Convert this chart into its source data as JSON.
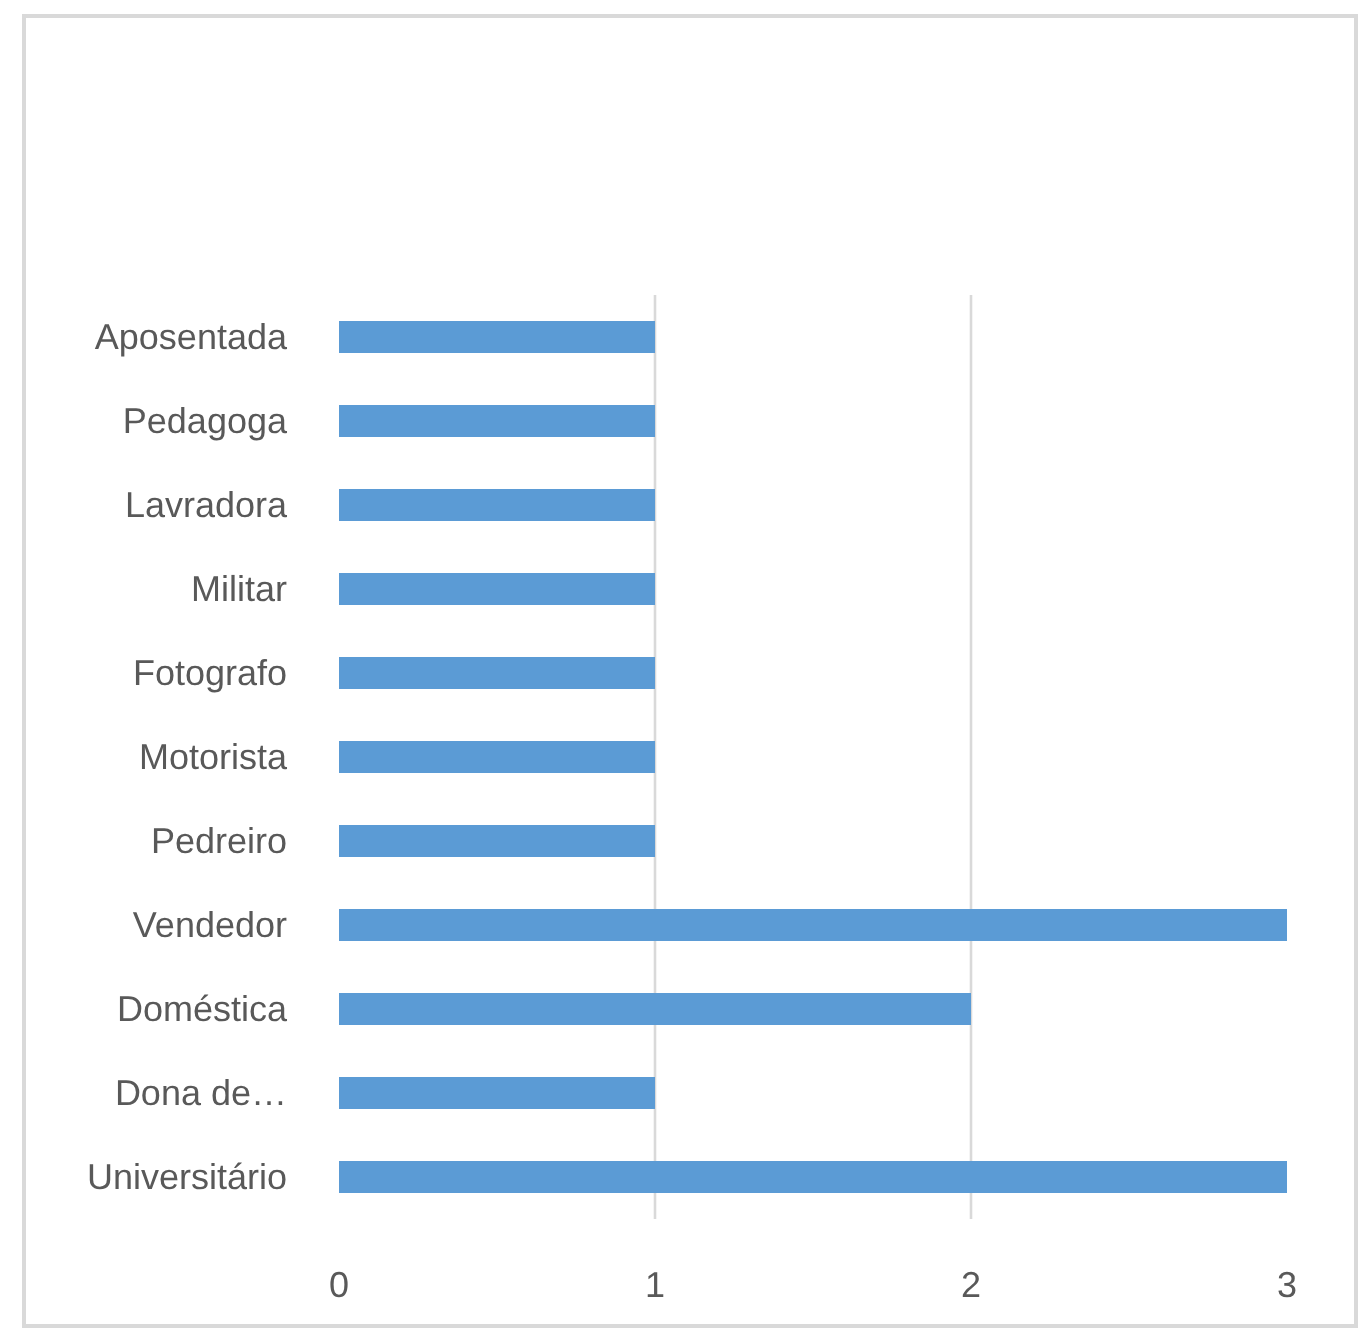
{
  "chart_data": {
    "type": "bar",
    "orientation": "horizontal",
    "categories": [
      "Aposentada",
      "Pedagoga",
      "Lavradora",
      "Militar",
      "Fotografo",
      "Motorista",
      "Pedreiro",
      "Vendedor",
      "Doméstica",
      "Dona de…",
      "Universitário"
    ],
    "values": [
      1,
      1,
      1,
      1,
      1,
      1,
      1,
      3,
      2,
      1,
      3
    ],
    "color": "#5b9bd5",
    "xlim": [
      0,
      3
    ],
    "xticks": [
      0,
      1,
      2,
      3
    ],
    "grid": "x"
  }
}
